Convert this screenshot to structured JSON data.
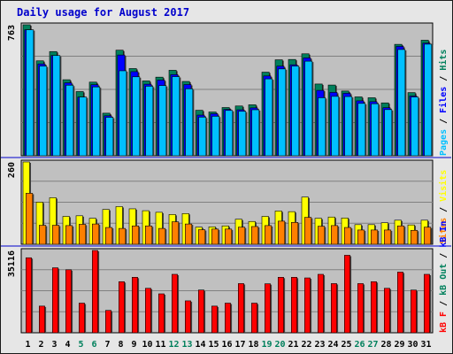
{
  "title": "Daily usage for August 2017",
  "colors": {
    "hits": "#00805c",
    "files": "#0000ff",
    "pages": "#00c0ff",
    "visits": "#ffff00",
    "sites": "#ff8000",
    "kbytes_in": "#ff0000",
    "weekend_label": "#00805c",
    "weekday_label": "#0000cc",
    "separator": "#0000cc",
    "plot_bg": "#c0c0c0"
  },
  "chart_data": [
    {
      "type": "bar",
      "panel": "hits_files_pages",
      "ymax_label": "763",
      "ylim": [
        0,
        763
      ],
      "grid": true,
      "right_labels": [
        "Pages",
        "Files",
        "Hits"
      ],
      "categories": [
        "1",
        "2",
        "3",
        "4",
        "5",
        "6",
        "7",
        "8",
        "9",
        "10",
        "11",
        "12",
        "13",
        "14",
        "15",
        "16",
        "17",
        "18",
        "19",
        "20",
        "21",
        "22",
        "23",
        "24",
        "25",
        "26",
        "27",
        "28",
        "29",
        "30",
        "31"
      ],
      "series": [
        {
          "name": "Hits",
          "values": [
            763,
            553,
            607,
            443,
            374,
            429,
            248,
            615,
            508,
            436,
            458,
            498,
            433,
            265,
            255,
            281,
            290,
            297,
            487,
            559,
            561,
            594,
            418,
            412,
            377,
            343,
            338,
            308,
            649,
            368,
            673
          ]
        },
        {
          "name": "Files",
          "values": [
            734,
            535,
            584,
            425,
            342,
            414,
            233,
            587,
            490,
            417,
            441,
            473,
            415,
            237,
            245,
            270,
            268,
            279,
            465,
            522,
            530,
            570,
            381,
            369,
            364,
            320,
            315,
            280,
            637,
            348,
            656
          ]
        },
        {
          "name": "Pages",
          "values": [
            734,
            522,
            584,
            411,
            342,
            401,
            224,
            495,
            460,
            405,
            409,
            461,
            390,
            225,
            230,
            264,
            259,
            268,
            448,
            506,
            522,
            551,
            338,
            346,
            345,
            305,
            303,
            269,
            619,
            342,
            650
          ]
        }
      ]
    },
    {
      "type": "bar",
      "panel": "visits_sites",
      "ymax_label": "260",
      "ylim": [
        0,
        260
      ],
      "grid": true,
      "right_labels": [
        "Sites",
        "Visits"
      ],
      "categories": [
        "1",
        "2",
        "3",
        "4",
        "5",
        "6",
        "7",
        "8",
        "9",
        "10",
        "11",
        "12",
        "13",
        "14",
        "15",
        "16",
        "17",
        "18",
        "19",
        "20",
        "21",
        "22",
        "23",
        "24",
        "25",
        "26",
        "27",
        "28",
        "29",
        "30",
        "31"
      ],
      "series": [
        {
          "name": "Visits",
          "values": [
            260,
            133,
            147,
            88,
            90,
            82,
            110,
            119,
            112,
            106,
            101,
            94,
            97,
            54,
            55,
            58,
            79,
            72,
            88,
            105,
            103,
            149,
            82,
            86,
            83,
            62,
            62,
            68,
            76,
            61,
            76
          ]
        },
        {
          "name": "Sites",
          "values": [
            161,
            60,
            60,
            59,
            63,
            64,
            53,
            50,
            58,
            58,
            50,
            71,
            64,
            46,
            48,
            48,
            54,
            56,
            59,
            73,
            69,
            85,
            57,
            59,
            53,
            45,
            45,
            45,
            58,
            44,
            54
          ]
        }
      ]
    },
    {
      "type": "bar",
      "panel": "kbytes",
      "ymax_label": "35116",
      "ylim": [
        0,
        35116
      ],
      "grid": true,
      "right_labels": [
        "kB F",
        "kB Out",
        "kB In"
      ],
      "categories": [
        "1",
        "2",
        "3",
        "4",
        "5",
        "6",
        "7",
        "8",
        "9",
        "10",
        "11",
        "12",
        "13",
        "14",
        "15",
        "16",
        "17",
        "18",
        "19",
        "20",
        "21",
        "22",
        "23",
        "24",
        "25",
        "26",
        "27",
        "28",
        "29",
        "30",
        "31"
      ],
      "series": [
        {
          "name": "kB In",
          "values": [
            32000,
            11380,
            27720,
            26880,
            12640,
            35116,
            9540,
            21790,
            23670,
            18970,
            16610,
            24930,
            13620,
            18240,
            11380,
            12640,
            20980,
            12640,
            20900,
            23670,
            23670,
            23400,
            24930,
            20980,
            33060,
            20980,
            21790,
            18970,
            25880,
            18220,
            24930
          ]
        }
      ]
    }
  ],
  "x_label_kinds": [
    "wd",
    "wd",
    "wd",
    "wd",
    "we",
    "we",
    "wd",
    "wd",
    "wd",
    "wd",
    "wd",
    "we",
    "we",
    "wd",
    "wd",
    "wd",
    "wd",
    "wd",
    "we",
    "we",
    "wd",
    "wd",
    "wd",
    "wd",
    "wd",
    "we",
    "we",
    "wd",
    "wd",
    "wd",
    "wd"
  ]
}
